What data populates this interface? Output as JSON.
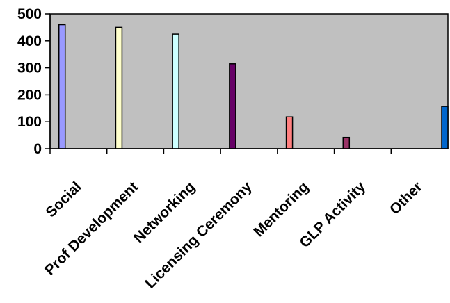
{
  "chart_data": {
    "type": "bar",
    "categories": [
      "Social",
      "Prof Development",
      "Networking",
      "Licensing Ceremony",
      "Mentoring",
      "GLP Activity",
      "Other"
    ],
    "values": [
      460,
      450,
      425,
      315,
      118,
      42,
      157
    ],
    "colors": [
      "#9999ff",
      "#ffffcc",
      "#ccffff",
      "#660066",
      "#ff8080",
      "#993366",
      "#0066cc"
    ],
    "ylim": [
      0,
      500
    ],
    "yticks": [
      0,
      100,
      200,
      300,
      400,
      500
    ],
    "plot_background": "#c0c0c0",
    "grid": false,
    "legend": "none"
  }
}
